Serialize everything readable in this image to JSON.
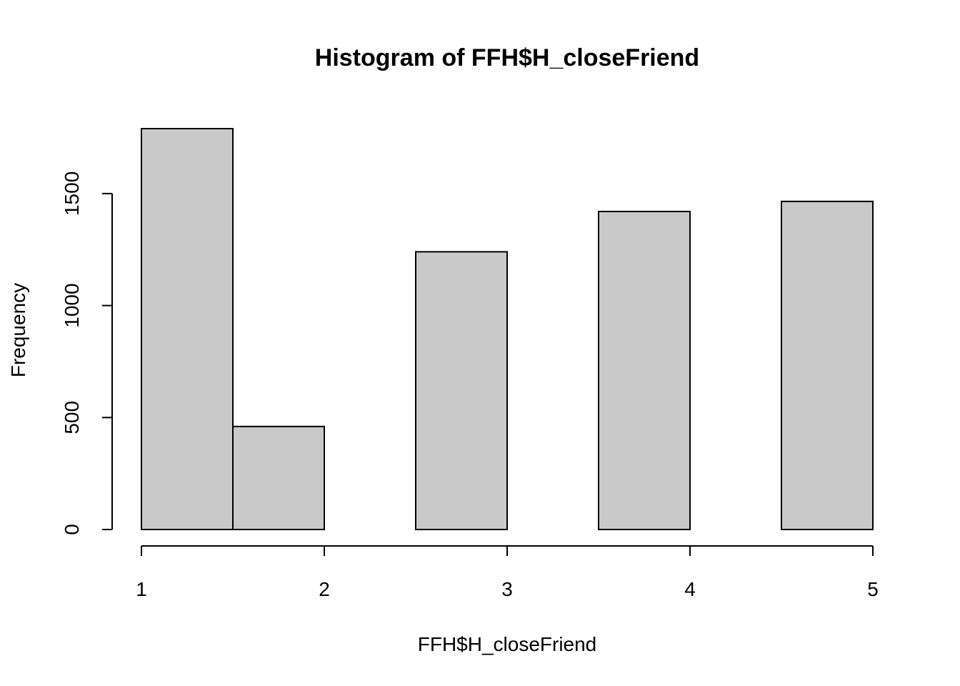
{
  "chart_data": {
    "type": "bar",
    "subtype": "histogram",
    "title": "Histogram of FFH$H_closeFriend",
    "xlabel": "FFH$H_closeFriend",
    "ylabel": "Frequency",
    "bins": [
      {
        "x0": 1.0,
        "x1": 1.5,
        "count": 1790
      },
      {
        "x0": 1.5,
        "x1": 2.0,
        "count": 460
      },
      {
        "x0": 2.0,
        "x1": 2.5,
        "count": 0
      },
      {
        "x0": 2.5,
        "x1": 3.0,
        "count": 1240
      },
      {
        "x0": 3.0,
        "x1": 3.5,
        "count": 0
      },
      {
        "x0": 3.5,
        "x1": 4.0,
        "count": 1420
      },
      {
        "x0": 4.0,
        "x1": 4.5,
        "count": 0
      },
      {
        "x0": 4.5,
        "x1": 5.0,
        "count": 1465
      }
    ],
    "xlim": [
      1,
      5
    ],
    "ylim": [
      0,
      1790
    ],
    "x_ticks": [
      1,
      2,
      3,
      4,
      5
    ],
    "y_ticks": [
      0,
      500,
      1000,
      1500
    ],
    "bar_fill": "#c9c9c9",
    "bar_stroke": "#000000",
    "grid": false,
    "legend": "none"
  }
}
